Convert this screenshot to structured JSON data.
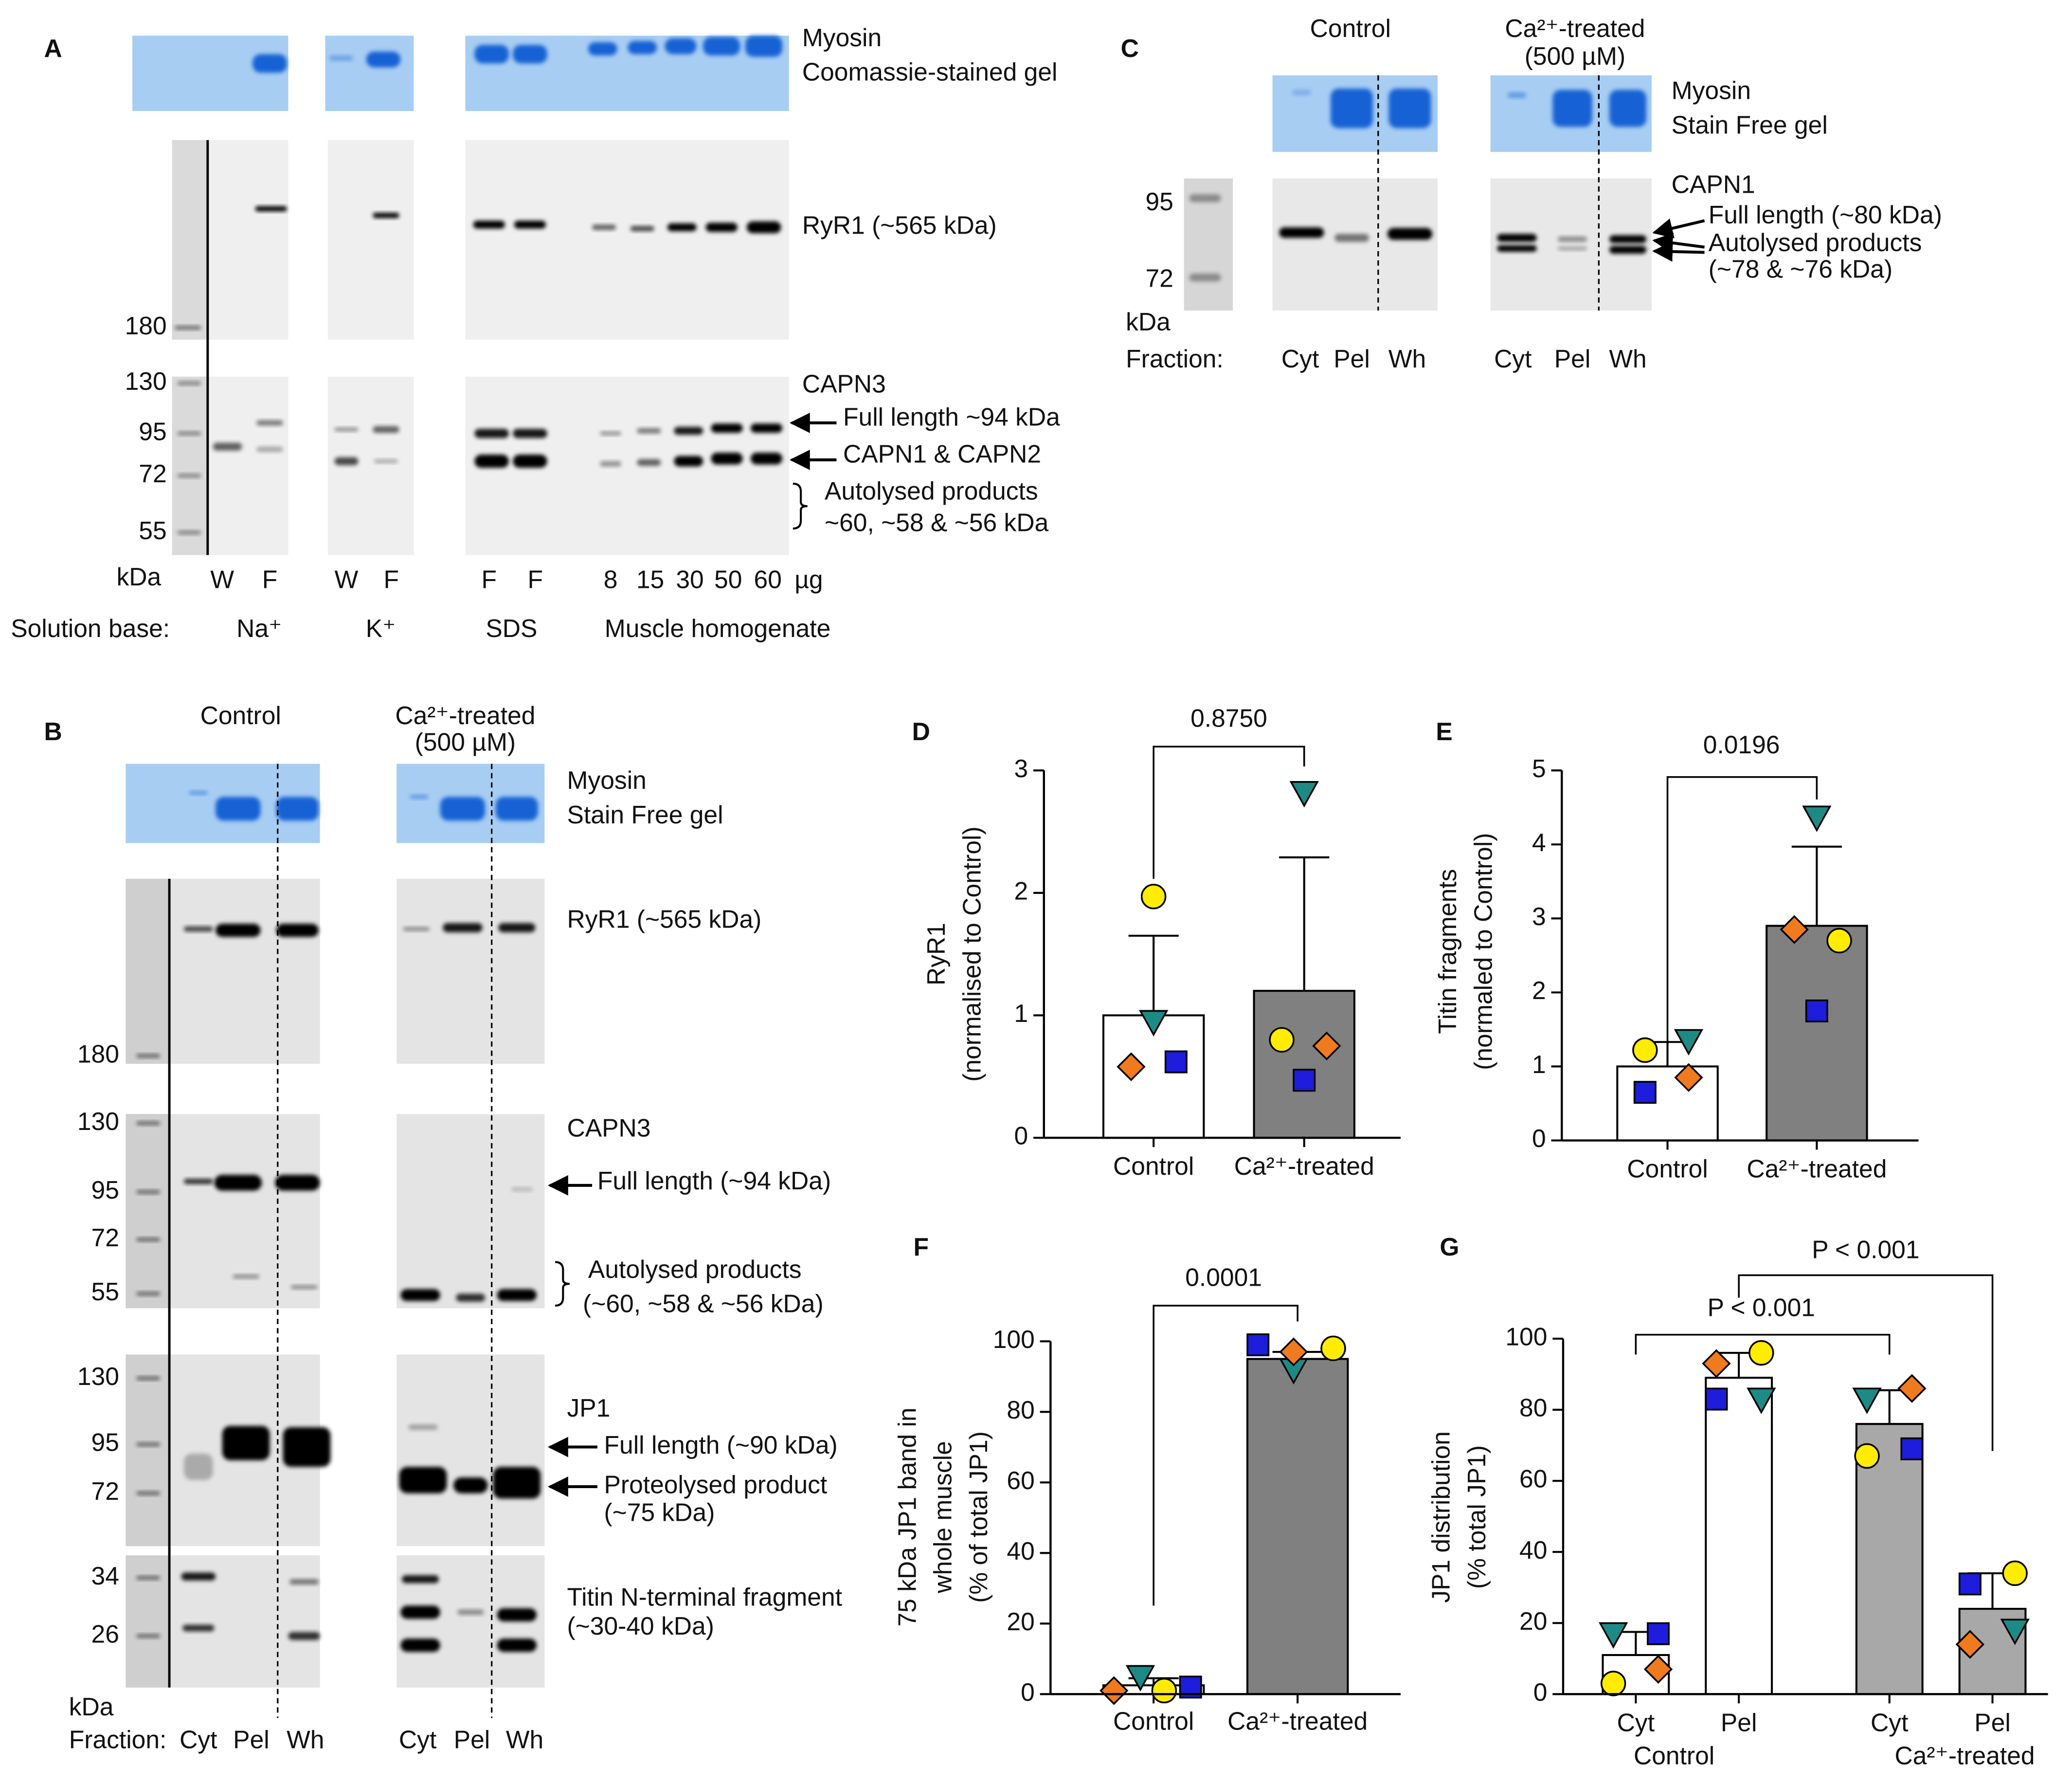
{
  "chart_data": [
    {
      "type": "bar",
      "panel_label": "D",
      "annotations": [
        "0.8750"
      ],
      "ylabel": [
        "RyR1",
        "(normalised to Control)"
      ],
      "categories": [
        "Control",
        "Ca²⁺-treated"
      ],
      "values": [
        1.0,
        1.2
      ],
      "errors": [
        0.65,
        1.09
      ],
      "bar_colors": [
        "#ffffff",
        "#808080"
      ],
      "ylim": [
        0,
        3
      ],
      "yticks": [
        0,
        1,
        2,
        3
      ],
      "series": [
        {
          "marker": "circle",
          "color": "#ffec00",
          "values": [
            1.97,
            0.8
          ]
        },
        {
          "marker": "triangle",
          "color": "#1e8a86",
          "values": [
            0.95,
            2.82
          ]
        },
        {
          "marker": "diamond",
          "color": "#f07a1e",
          "values": [
            0.58,
            0.75
          ]
        },
        {
          "marker": "square",
          "color": "#1d1ddb",
          "values": [
            0.62,
            0.47
          ]
        }
      ]
    },
    {
      "type": "bar",
      "panel_label": "E",
      "annotations": [
        "0.0196"
      ],
      "ylabel": [
        "Titin fragments",
        "(normaled to Control)"
      ],
      "categories": [
        "Control",
        "Ca²⁺-treated"
      ],
      "values": [
        1.0,
        2.9
      ],
      "errors": [
        0.33,
        1.07
      ],
      "bar_colors": [
        "#ffffff",
        "#808080"
      ],
      "ylim": [
        0,
        5
      ],
      "yticks": [
        0,
        1,
        2,
        3,
        4,
        5
      ],
      "series": [
        {
          "marker": "circle",
          "color": "#ffec00",
          "values": [
            1.22,
            2.7
          ]
        },
        {
          "marker": "triangle",
          "color": "#1e8a86",
          "values": [
            1.35,
            4.37
          ]
        },
        {
          "marker": "diamond",
          "color": "#f07a1e",
          "values": [
            0.85,
            2.85
          ]
        },
        {
          "marker": "square",
          "color": "#1d1ddb",
          "values": [
            0.65,
            1.75
          ]
        }
      ]
    },
    {
      "type": "bar",
      "panel_label": "F",
      "annotations": [
        "0.0001"
      ],
      "ylabel": [
        "75 kDa JP1 band in",
        "whole muscle",
        "(% of total JP1)"
      ],
      "categories": [
        "Control",
        "Ca²⁺-treated"
      ],
      "values": [
        2.5,
        95
      ],
      "errors": [
        2,
        2
      ],
      "bar_colors": [
        "#ffffff",
        "#808080"
      ],
      "ylim": [
        0,
        100
      ],
      "yticks": [
        0,
        20,
        40,
        60,
        80,
        100
      ],
      "series": [
        {
          "marker": "circle",
          "color": "#ffec00",
          "values": [
            1,
            98
          ]
        },
        {
          "marker": "triangle",
          "color": "#1e8a86",
          "values": [
            5,
            92
          ]
        },
        {
          "marker": "diamond",
          "color": "#f07a1e",
          "values": [
            1,
            97
          ]
        },
        {
          "marker": "square",
          "color": "#1d1ddb",
          "values": [
            2,
            99
          ]
        }
      ]
    },
    {
      "type": "bar",
      "panel_label": "G",
      "annotations": [
        "P < 0.001",
        "P < 0.001"
      ],
      "ylabel": [
        "JP1 distribution",
        "(% total JP1)"
      ],
      "categories": [
        "Cyt",
        "Pel",
        "Cyt",
        "Pel"
      ],
      "groups": [
        "Control",
        "Ca²⁺-treated"
      ],
      "values": [
        11,
        89,
        76,
        24
      ],
      "errors": [
        6.5,
        7,
        9.5,
        10
      ],
      "bar_colors": [
        "#ffffff",
        "#ffffff",
        "#a8a8a8",
        "#a8a8a8"
      ],
      "ylim": [
        0,
        100
      ],
      "yticks": [
        0,
        20,
        40,
        60,
        80,
        100
      ],
      "series": [
        {
          "marker": "circle",
          "color": "#ffec00",
          "values": [
            3,
            96,
            67,
            34
          ]
        },
        {
          "marker": "triangle",
          "color": "#1e8a86",
          "values": [
            17,
            83,
            83,
            18
          ]
        },
        {
          "marker": "diamond",
          "color": "#f07a1e",
          "values": [
            7,
            93,
            86,
            14
          ]
        },
        {
          "marker": "square",
          "color": "#1d1ddb",
          "values": [
            17,
            83,
            69,
            31
          ]
        }
      ]
    }
  ],
  "figure": {
    "A": {
      "letter": "A",
      "gel": [
        "Myosin",
        "Coomassie-stained gel"
      ],
      "ryr1": "RyR1 (~565 kDa)",
      "mw": [
        "180",
        "130",
        "95",
        "72",
        "55"
      ],
      "capn3": "CAPN3",
      "full_length": "Full length ~94 kDa",
      "capn12": "CAPN1 & CAPN2",
      "autolysed": [
        "Autolysed products",
        "~60, ~58 & ~56 kDa"
      ],
      "kda": "kDa",
      "lanes": [
        "W",
        "F",
        "W",
        "F",
        "F",
        "F",
        "8",
        "15",
        "30",
        "50",
        "60",
        "µg"
      ],
      "solution_base": "Solution base:",
      "solutions": [
        "Na⁺",
        "K⁺",
        "SDS",
        "Muscle homogenate"
      ]
    },
    "B": {
      "letter": "B",
      "groups": [
        "Control",
        "Ca²⁺-treated"
      ],
      "concentration": "(500 µM)",
      "gel": [
        "Myosin",
        "Stain Free gel"
      ],
      "ryr1": "RyR1 (~565 kDa)",
      "mw_ryr1": "180",
      "mw_capn3": [
        "130",
        "95",
        "72",
        "55"
      ],
      "capn3": "CAPN3",
      "capn3_full": "Full length (~94 kDa)",
      "autolysed": [
        "Autolysed products",
        "(~60, ~58 & ~56 kDa)"
      ],
      "mw_jp1": [
        "130",
        "95",
        "72"
      ],
      "jp1": "JP1",
      "jp1_full": "Full length (~90 kDa)",
      "proteolysed": [
        "Proteolysed product",
        "(~75 kDa)"
      ],
      "mw_titin": [
        "34",
        "26"
      ],
      "titin": [
        "Titin N-terminal fragment",
        "(~30-40 kDa)"
      ],
      "kda": "kDa",
      "fraction": "Fraction:",
      "lanes": [
        "Cyt",
        "Pel",
        "Wh",
        "Cyt",
        "Pel",
        "Wh"
      ]
    },
    "C": {
      "letter": "C",
      "groups": [
        "Control",
        "Ca²⁺-treated"
      ],
      "concentration": "(500 µM)",
      "gel": [
        "Myosin",
        "Stain Free gel"
      ],
      "mw": [
        "95",
        "72"
      ],
      "kda": "kDa",
      "capn1": "CAPN1",
      "full_length": "Full length (~80 kDa)",
      "autolysed": [
        "Autolysed products",
        "(~78 & ~76 kDa)"
      ],
      "fraction": "Fraction:",
      "lanes": [
        "Cyt",
        "Pel",
        "Wh",
        "Cyt",
        "Pel",
        "Wh"
      ]
    }
  }
}
